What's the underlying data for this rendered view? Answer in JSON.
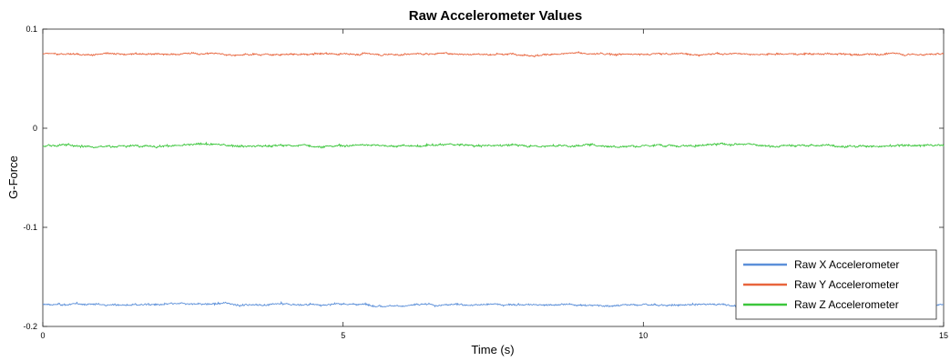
{
  "chart_data": {
    "type": "line",
    "title": "Raw Accelerometer Values",
    "xlabel": "Time (s)",
    "ylabel": "G-Force",
    "xlim": [
      0,
      15
    ],
    "ylim": [
      -0.2,
      0.1
    ],
    "xticks": [
      0,
      5,
      10,
      15
    ],
    "xtick_labels": [
      "0",
      "5",
      "10",
      "15"
    ],
    "yticks": [
      -0.2,
      -0.1,
      0,
      0.1
    ],
    "ytick_labels": [
      "-0.2",
      "-0.1",
      "0",
      "0.1"
    ],
    "grid": false,
    "legend_position": "bottom-right",
    "series": [
      {
        "name": "Raw X Accelerometer",
        "color": "#5b8fd9",
        "mean": -0.178,
        "noise": 0.0012
      },
      {
        "name": "Raw Y Accelerometer",
        "color": "#e8643c",
        "mean": 0.075,
        "noise": 0.0011
      },
      {
        "name": "Raw Z Accelerometer",
        "color": "#3cc63c",
        "mean": -0.0175,
        "noise": 0.0013
      }
    ]
  }
}
